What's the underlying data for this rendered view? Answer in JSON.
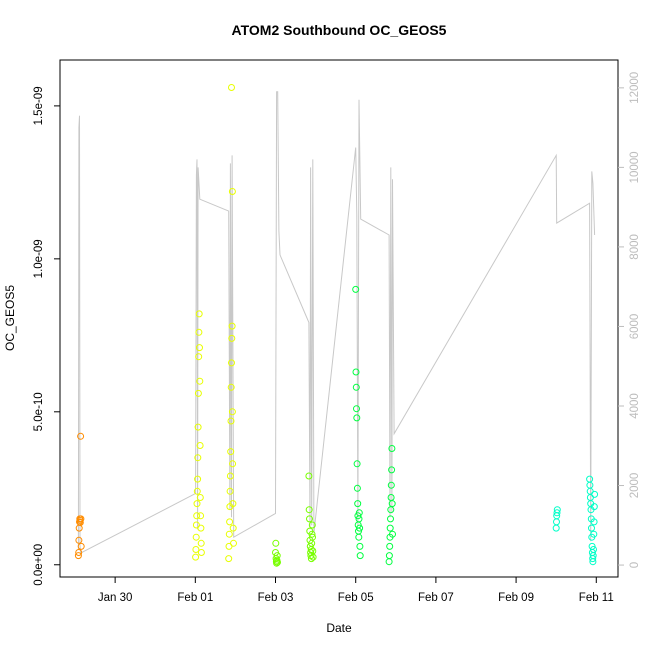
{
  "chart_data": {
    "type": "scatter",
    "title": "ATOM2 Southbound OC_GEOS5",
    "xlabel": "Date",
    "ylabel": "OC_GEOS5",
    "x_axis": {
      "type": "date",
      "range": [
        "2017-01-28T15:00",
        "2017-02-11T13:00"
      ],
      "ticks": [
        {
          "x": "2017-01-30",
          "label": "Jan 30"
        },
        {
          "x": "2017-02-01",
          "label": "Feb 01"
        },
        {
          "x": "2017-02-03",
          "label": "Feb 03"
        },
        {
          "x": "2017-02-05",
          "label": "Feb 05"
        },
        {
          "x": "2017-02-07",
          "label": "Feb 07"
        },
        {
          "x": "2017-02-09",
          "label": "Feb 09"
        },
        {
          "x": "2017-02-11",
          "label": "Feb 11"
        }
      ]
    },
    "y_axis": {
      "range": [
        -4e-11,
        1.65e-09
      ],
      "ticks": [
        {
          "y": 0,
          "label": "0.0e+00"
        },
        {
          "y": 5e-10,
          "label": "5.0e-10"
        },
        {
          "y": 1e-09,
          "label": "1.0e-09"
        },
        {
          "y": 1.5e-09,
          "label": "1.5e-09"
        }
      ]
    },
    "y2_axis": {
      "range": [
        -300,
        12700
      ],
      "color": "#bdbdbd",
      "ticks": [
        {
          "y": 0,
          "label": "0"
        },
        {
          "y": 2000,
          "label": "2000"
        },
        {
          "y": 4000,
          "label": "4000"
        },
        {
          "y": 6000,
          "label": "6000"
        },
        {
          "y": 8000,
          "label": "8000"
        },
        {
          "y": 10000,
          "label": "10000"
        },
        {
          "y": 12000,
          "label": "12000"
        }
      ]
    },
    "grid": false,
    "legend": "none",
    "altitude_line_color": "#c8c8c8",
    "altitude_trace": [
      [
        "2017-01-29T02:00",
        400
      ],
      [
        "2017-01-29T02:20",
        11000
      ],
      [
        "2017-01-29T02:40",
        11300
      ],
      [
        "2017-01-29T03:00",
        500
      ],
      [
        "2017-01-29T03:20",
        300
      ],
      [
        "2017-02-01T00:10",
        1800
      ],
      [
        "2017-02-01T00:40",
        9800
      ],
      [
        "2017-02-01T01:00",
        10200
      ],
      [
        "2017-02-01T01:20",
        900
      ],
      [
        "2017-02-01T01:40",
        10000
      ],
      [
        "2017-02-01T02:20",
        9500
      ],
      [
        "2017-02-01T02:40",
        9200
      ],
      [
        "2017-02-01T20:00",
        8900
      ],
      [
        "2017-02-01T20:40",
        1400
      ],
      [
        "2017-02-01T21:00",
        10100
      ],
      [
        "2017-02-01T21:40",
        1200
      ],
      [
        "2017-02-01T22:00",
        10300
      ],
      [
        "2017-02-01T23:00",
        700
      ],
      [
        "2017-02-03T00:00",
        1300
      ],
      [
        "2017-02-03T00:40",
        11900
      ],
      [
        "2017-02-03T01:20",
        11900
      ],
      [
        "2017-02-03T02:00",
        8400
      ],
      [
        "2017-02-03T02:40",
        7800
      ],
      [
        "2017-02-03T20:00",
        6100
      ],
      [
        "2017-02-03T20:40",
        900
      ],
      [
        "2017-02-03T21:00",
        10000
      ],
      [
        "2017-02-03T21:40",
        1000
      ],
      [
        "2017-02-03T22:20",
        10200
      ],
      [
        "2017-02-03T23:00",
        800
      ],
      [
        "2017-02-05T00:00",
        10500
      ],
      [
        "2017-02-05T00:40",
        8800
      ],
      [
        "2017-02-05T01:20",
        1000
      ],
      [
        "2017-02-05T02:00",
        11700
      ],
      [
        "2017-02-05T03:00",
        8700
      ],
      [
        "2017-02-05T20:00",
        8300
      ],
      [
        "2017-02-05T20:30",
        1200
      ],
      [
        "2017-02-05T21:00",
        10000
      ],
      [
        "2017-02-05T21:40",
        1300
      ],
      [
        "2017-02-05T22:00",
        9700
      ],
      [
        "2017-02-05T23:00",
        3300
      ],
      [
        "2017-02-10T00:00",
        10300
      ],
      [
        "2017-02-10T00:20",
        8600
      ],
      [
        "2017-02-10T20:00",
        9100
      ],
      [
        "2017-02-10T20:40",
        600
      ],
      [
        "2017-02-10T21:20",
        9900
      ],
      [
        "2017-02-10T22:00",
        9600
      ],
      [
        "2017-02-10T23:00",
        8300
      ]
    ],
    "series": [
      {
        "color": "#ff8c00",
        "points": [
          [
            "2017-01-29T02:00",
            3e-11
          ],
          [
            "2017-01-29T02:10",
            4e-11
          ],
          [
            "2017-01-29T02:20",
            8e-11
          ],
          [
            "2017-01-29T02:30",
            1.2e-10
          ],
          [
            "2017-01-29T02:40",
            1.4e-10
          ],
          [
            "2017-01-29T02:50",
            1.5e-10
          ],
          [
            "2017-01-29T03:00",
            1.45e-10
          ],
          [
            "2017-01-29T03:10",
            1.38e-10
          ],
          [
            "2017-01-29T03:20",
            4.2e-10
          ],
          [
            "2017-01-29T03:30",
            1.5e-10
          ],
          [
            "2017-01-29T03:40",
            6e-11
          ]
        ]
      },
      {
        "color": "#e8ff00",
        "points": [
          [
            "2017-02-01T00:10",
            2.5e-11
          ],
          [
            "2017-02-01T00:20",
            5e-11
          ],
          [
            "2017-02-01T00:30",
            9e-11
          ],
          [
            "2017-02-01T00:40",
            1.3e-10
          ],
          [
            "2017-02-01T00:50",
            1.6e-10
          ],
          [
            "2017-02-01T01:00",
            2e-10
          ],
          [
            "2017-02-01T01:10",
            2.4e-10
          ],
          [
            "2017-02-01T01:20",
            2.8e-10
          ],
          [
            "2017-02-01T01:30",
            3.5e-10
          ],
          [
            "2017-02-01T01:40",
            4.5e-10
          ],
          [
            "2017-02-01T01:50",
            5.6e-10
          ],
          [
            "2017-02-01T02:00",
            6.8e-10
          ],
          [
            "2017-02-01T02:10",
            7.6e-10
          ],
          [
            "2017-02-01T02:20",
            8.2e-10
          ],
          [
            "2017-02-01T02:30",
            7.1e-10
          ],
          [
            "2017-02-01T02:40",
            6e-10
          ],
          [
            "2017-02-01T02:50",
            3.9e-10
          ],
          [
            "2017-02-01T03:00",
            2.2e-10
          ],
          [
            "2017-02-01T03:10",
            1.6e-10
          ],
          [
            "2017-02-01T03:20",
            1.2e-10
          ],
          [
            "2017-02-01T03:30",
            7e-11
          ],
          [
            "2017-02-01T03:40",
            4e-11
          ],
          [
            "2017-02-01T20:00",
            2e-11
          ],
          [
            "2017-02-01T20:10",
            6e-11
          ],
          [
            "2017-02-01T20:20",
            1e-10
          ],
          [
            "2017-02-01T20:30",
            1.4e-10
          ],
          [
            "2017-02-01T20:40",
            1.9e-10
          ],
          [
            "2017-02-01T20:50",
            2.4e-10
          ],
          [
            "2017-02-01T21:00",
            2.9e-10
          ],
          [
            "2017-02-01T21:10",
            3.7e-10
          ],
          [
            "2017-02-01T21:20",
            4.7e-10
          ],
          [
            "2017-02-01T21:30",
            5.8e-10
          ],
          [
            "2017-02-01T21:40",
            6.6e-10
          ],
          [
            "2017-02-01T21:50",
            7.4e-10
          ],
          [
            "2017-02-01T22:00",
            7.8e-10
          ],
          [
            "2017-02-01T22:10",
            5e-10
          ],
          [
            "2017-02-01T22:20",
            3.3e-10
          ],
          [
            "2017-02-01T22:30",
            2e-10
          ],
          [
            "2017-02-01T22:40",
            1.2e-10
          ],
          [
            "2017-02-01T22:50",
            7e-11
          ],
          [
            "2017-02-01T22:10",
            1.22e-09
          ],
          [
            "2017-02-01T21:40",
            1.56e-09
          ]
        ]
      },
      {
        "color": "#78ff00",
        "points": [
          [
            "2017-02-03T00:00",
            4e-11
          ],
          [
            "2017-02-03T00:10",
            7e-11
          ],
          [
            "2017-02-03T00:20",
            2e-11
          ],
          [
            "2017-02-03T00:30",
            1e-11
          ],
          [
            "2017-02-03T00:40",
            5e-12
          ],
          [
            "2017-02-03T00:50",
            1.5e-11
          ],
          [
            "2017-02-03T01:00",
            3e-11
          ],
          [
            "2017-02-03T01:10",
            8e-12
          ],
          [
            "2017-02-03T20:00",
            2.9e-10
          ],
          [
            "2017-02-03T20:10",
            1.8e-10
          ],
          [
            "2017-02-03T20:20",
            1.5e-10
          ],
          [
            "2017-02-03T20:30",
            1.1e-10
          ],
          [
            "2017-02-03T20:40",
            8e-11
          ],
          [
            "2017-02-03T20:50",
            6e-11
          ],
          [
            "2017-02-03T21:00",
            4e-11
          ],
          [
            "2017-02-03T21:10",
            3e-11
          ],
          [
            "2017-02-03T21:20",
            5e-11
          ],
          [
            "2017-02-03T21:30",
            2e-11
          ],
          [
            "2017-02-03T21:40",
            7e-11
          ],
          [
            "2017-02-03T21:50",
            1e-10
          ],
          [
            "2017-02-03T22:00",
            1.3e-10
          ],
          [
            "2017-02-03T22:10",
            9e-11
          ],
          [
            "2017-02-03T22:20",
            4.5e-11
          ],
          [
            "2017-02-03T22:30",
            2.5e-11
          ]
        ]
      },
      {
        "color": "#00ff40",
        "points": [
          [
            "2017-02-05T00:00",
            9e-10
          ],
          [
            "2017-02-05T00:10",
            6.3e-10
          ],
          [
            "2017-02-05T00:20",
            5.8e-10
          ],
          [
            "2017-02-05T00:30",
            5.1e-10
          ],
          [
            "2017-02-05T00:40",
            4.8e-10
          ],
          [
            "2017-02-05T00:50",
            3.3e-10
          ],
          [
            "2017-02-05T01:00",
            2.5e-10
          ],
          [
            "2017-02-05T01:10",
            2e-10
          ],
          [
            "2017-02-05T01:20",
            1.6e-10
          ],
          [
            "2017-02-05T01:30",
            1.3e-10
          ],
          [
            "2017-02-05T01:40",
            1.1e-10
          ],
          [
            "2017-02-05T01:50",
            9e-11
          ],
          [
            "2017-02-05T02:00",
            1.5e-10
          ],
          [
            "2017-02-05T02:10",
            1.7e-10
          ],
          [
            "2017-02-05T02:20",
            1.2e-10
          ],
          [
            "2017-02-05T02:30",
            6e-11
          ],
          [
            "2017-02-05T02:40",
            3e-11
          ],
          [
            "2017-02-05T20:00",
            1e-11
          ],
          [
            "2017-02-05T20:10",
            3e-11
          ],
          [
            "2017-02-05T20:20",
            6e-11
          ],
          [
            "2017-02-05T20:30",
            9e-11
          ],
          [
            "2017-02-05T20:40",
            1.2e-10
          ],
          [
            "2017-02-05T20:50",
            1.5e-10
          ],
          [
            "2017-02-05T21:00",
            1.8e-10
          ],
          [
            "2017-02-05T21:10",
            2.2e-10
          ],
          [
            "2017-02-05T21:20",
            2.6e-10
          ],
          [
            "2017-02-05T21:30",
            3.1e-10
          ],
          [
            "2017-02-05T21:40",
            3.8e-10
          ],
          [
            "2017-02-05T21:50",
            2e-10
          ],
          [
            "2017-02-05T22:00",
            1e-10
          ]
        ]
      },
      {
        "color": "#00ffc8",
        "points": [
          [
            "2017-02-10T00:00",
            1.2e-10
          ],
          [
            "2017-02-10T00:10",
            1.4e-10
          ],
          [
            "2017-02-10T00:20",
            1.6e-10
          ],
          [
            "2017-02-10T00:30",
            1.7e-10
          ],
          [
            "2017-02-10T00:40",
            1.8e-10
          ],
          [
            "2017-02-10T20:00",
            2.8e-10
          ],
          [
            "2017-02-10T20:10",
            2.6e-10
          ],
          [
            "2017-02-10T20:20",
            2.4e-10
          ],
          [
            "2017-02-10T20:30",
            2.2e-10
          ],
          [
            "2017-02-10T20:40",
            2e-10
          ],
          [
            "2017-02-10T20:50",
            1.8e-10
          ],
          [
            "2017-02-10T21:00",
            1.5e-10
          ],
          [
            "2017-02-10T21:10",
            1.2e-10
          ],
          [
            "2017-02-10T21:20",
            9e-11
          ],
          [
            "2017-02-10T21:30",
            6e-11
          ],
          [
            "2017-02-10T21:40",
            4e-11
          ],
          [
            "2017-02-10T21:50",
            2e-11
          ],
          [
            "2017-02-10T22:00",
            1e-11
          ],
          [
            "2017-02-10T22:10",
            3e-11
          ],
          [
            "2017-02-10T22:20",
            5e-11
          ],
          [
            "2017-02-10T22:30",
            1e-10
          ],
          [
            "2017-02-10T22:40",
            1.4e-10
          ],
          [
            "2017-02-10T22:50",
            1.9e-10
          ],
          [
            "2017-02-10T23:00",
            2.3e-10
          ]
        ]
      }
    ]
  }
}
